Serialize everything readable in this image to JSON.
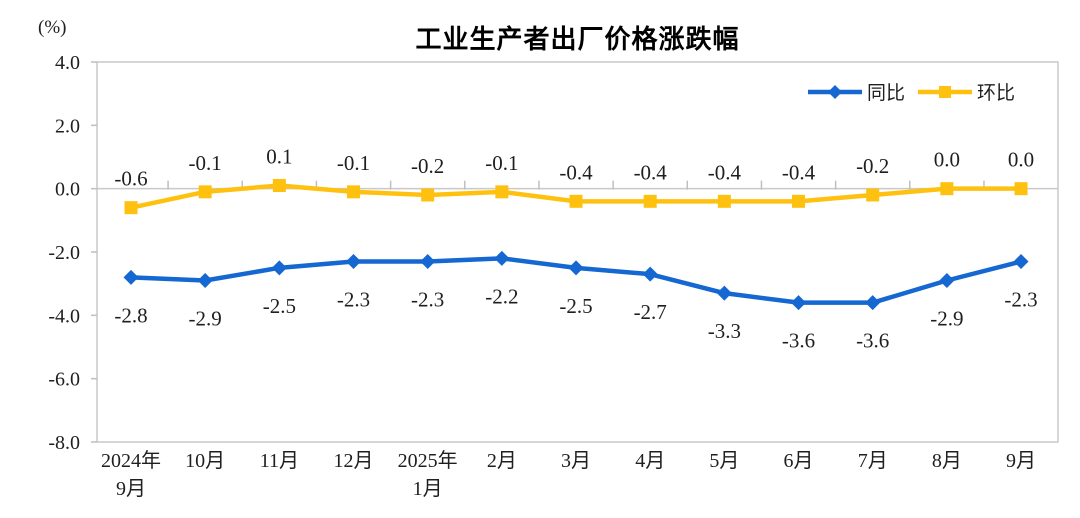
{
  "chart": {
    "title": "工业生产者出厂价格涨跌幅",
    "unit_label": "(%)"
  },
  "chart_data": {
    "type": "line",
    "title": "工业生产者出厂价格涨跌幅",
    "unit": "(%)",
    "categories": [
      "2024年9月",
      "10月",
      "11月",
      "12月",
      "2025年1月",
      "2月",
      "3月",
      "4月",
      "5月",
      "6月",
      "7月",
      "8月",
      "9月"
    ],
    "category_lines": [
      [
        "2024年",
        "9月"
      ],
      [
        "10月"
      ],
      [
        "11月"
      ],
      [
        "12月"
      ],
      [
        "2025年",
        "1月"
      ],
      [
        "2月"
      ],
      [
        "3月"
      ],
      [
        "4月"
      ],
      [
        "5月"
      ],
      [
        "6月"
      ],
      [
        "7月"
      ],
      [
        "8月"
      ],
      [
        "9月"
      ]
    ],
    "series": [
      {
        "name": "同比",
        "marker": "diamond",
        "color": "#1567D2",
        "label_position": "below",
        "values": [
          -2.8,
          -2.9,
          -2.5,
          -2.3,
          -2.3,
          -2.2,
          -2.5,
          -2.7,
          -3.3,
          -3.6,
          -3.6,
          -2.9,
          -2.3
        ],
        "labels": [
          "-2.8",
          "-2.9",
          "-2.5",
          "-2.3",
          "-2.3",
          "-2.2",
          "-2.5",
          "-2.7",
          "-3.3",
          "-3.6",
          "-3.6",
          "-2.9",
          "-2.3"
        ]
      },
      {
        "name": "环比",
        "marker": "square",
        "color": "#FFC110",
        "label_position": "above",
        "values": [
          -0.6,
          -0.1,
          0.1,
          -0.1,
          -0.2,
          -0.1,
          -0.4,
          -0.4,
          -0.4,
          -0.4,
          -0.2,
          0.0,
          0.0
        ],
        "labels": [
          "-0.6",
          "-0.1",
          "0.1",
          "-0.1",
          "-0.2",
          "-0.1",
          "-0.4",
          "-0.4",
          "-0.4",
          "-0.4",
          "-0.2",
          "0.0",
          "0.0"
        ]
      }
    ],
    "y_axis": {
      "tick_labels": [
        "4.0",
        "2.0",
        "0.0",
        "-2.0",
        "-4.0",
        "-6.0",
        "-8.0"
      ],
      "min": -8.0,
      "max": 4.0
    },
    "legend": {
      "position": "top-right-inside",
      "items": [
        "同比",
        "环比"
      ]
    },
    "grid": "zero-line-only",
    "colors": {
      "axis": "#C9C9C9",
      "tick": "#BFBFBF",
      "text": "#1f1f1f"
    }
  }
}
